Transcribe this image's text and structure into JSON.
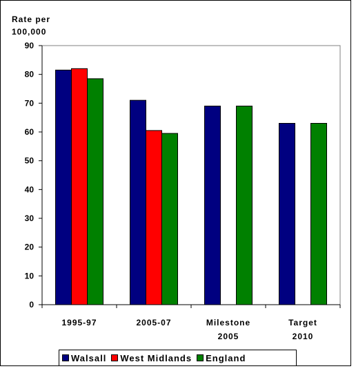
{
  "chart_data": {
    "type": "bar",
    "ylabel_line1": "Rate per",
    "ylabel_line2": "100,000",
    "categories": [
      [
        "1995-97"
      ],
      [
        "2005-07"
      ],
      [
        "Milestone",
        "2005"
      ],
      [
        "Target",
        "2010"
      ]
    ],
    "ylim": [
      0,
      90
    ],
    "yticks": [
      0,
      10,
      20,
      30,
      40,
      50,
      60,
      70,
      80,
      90
    ],
    "grid": false,
    "legend_position": "bottom",
    "series": [
      {
        "name": "Walsall",
        "color": "#000080",
        "values": [
          81.5,
          71,
          69,
          63
        ]
      },
      {
        "name": "West Midlands",
        "color": "#ff0000",
        "values": [
          82,
          60.5,
          null,
          null
        ]
      },
      {
        "name": "England",
        "color": "#008000",
        "values": [
          78.5,
          59.5,
          69,
          63
        ]
      }
    ]
  }
}
